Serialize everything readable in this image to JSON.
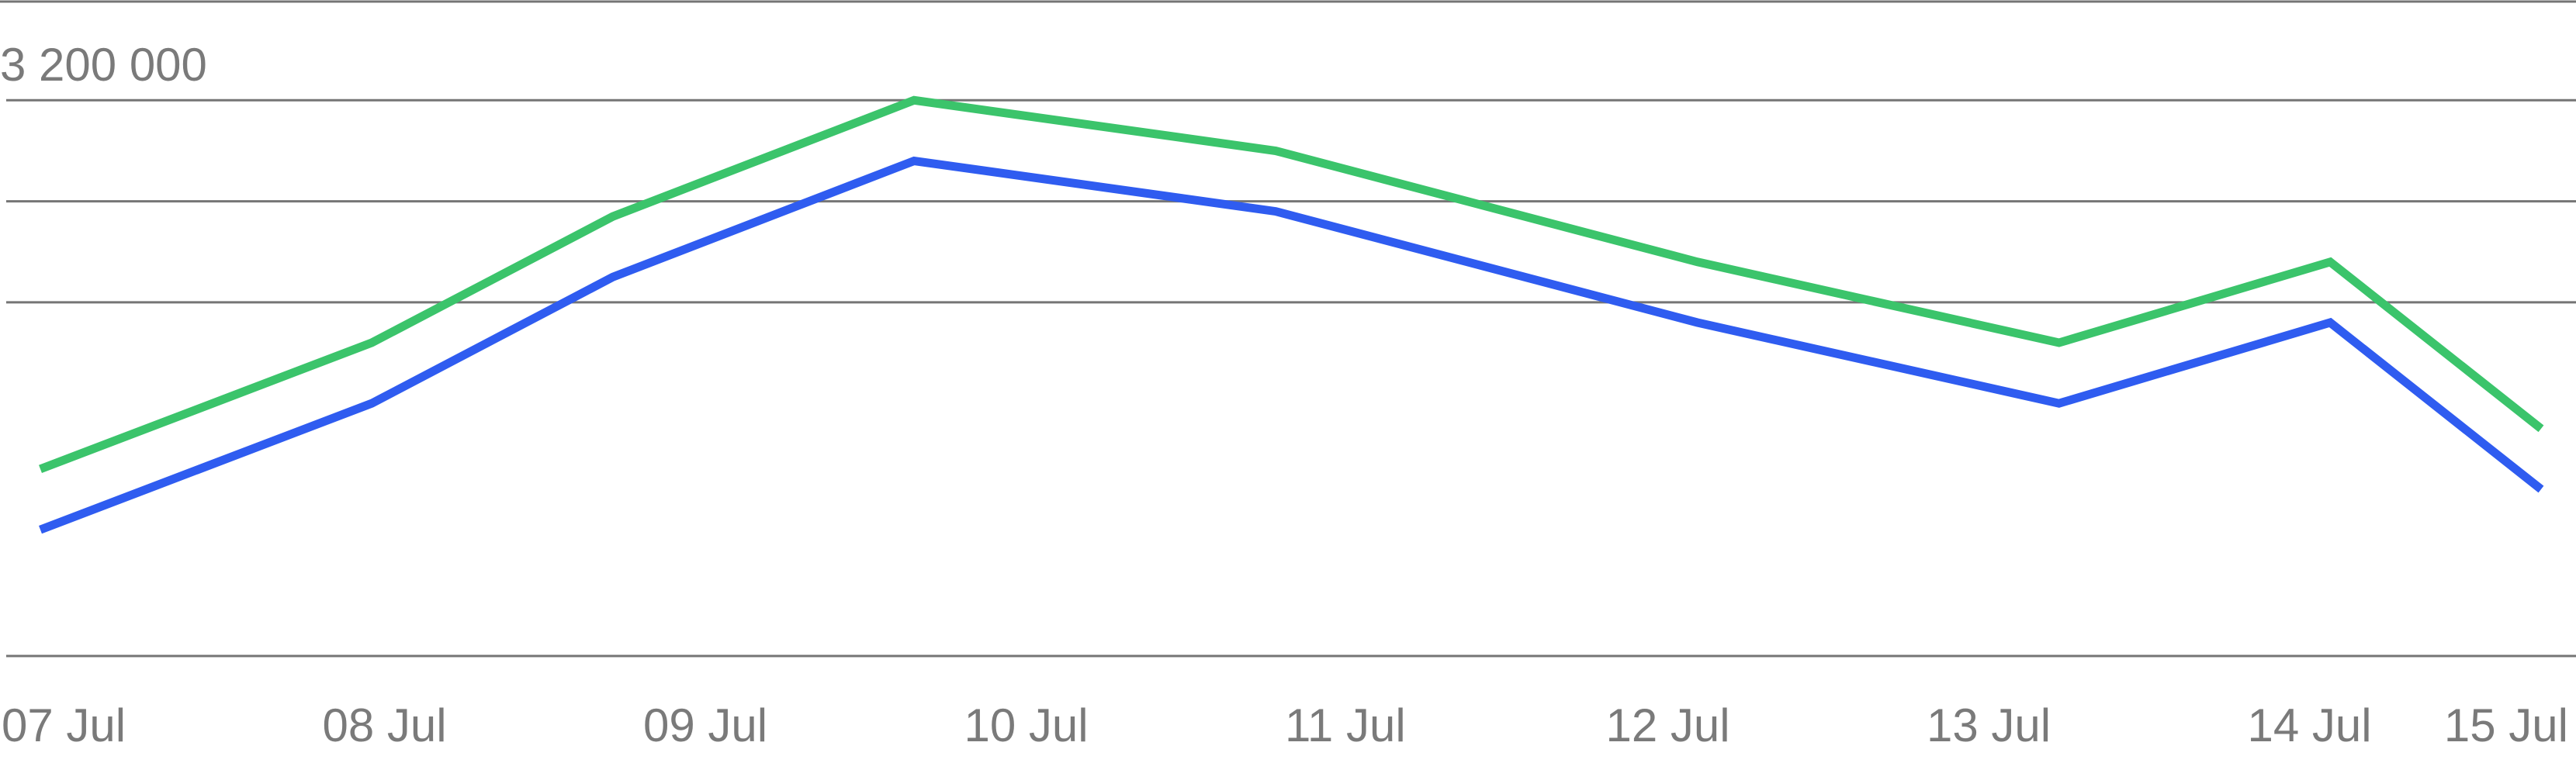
{
  "chart_data": {
    "type": "line",
    "categories": [
      "07 Jul",
      "08 Jul",
      "09 Jul",
      "10 Jul",
      "11 Jul",
      "12 Jul",
      "13 Jul",
      "14 Jul",
      "15 Jul"
    ],
    "y_tick_label": "3 200 000",
    "grid": true,
    "series": [
      {
        "color": "#3bc46b",
        "points": [
          {
            "x": 0.0,
            "y": 2370000
          },
          {
            "x": 1.1,
            "y": 2620000
          },
          {
            "x": 1.9,
            "y": 2870000
          },
          {
            "x": 2.9,
            "y": 3100000
          },
          {
            "x": 4.1,
            "y": 3000000
          },
          {
            "x": 5.5,
            "y": 2780000
          },
          {
            "x": 6.7,
            "y": 2620000
          },
          {
            "x": 7.6,
            "y": 2780000
          },
          {
            "x": 8.3,
            "y": 2450000
          }
        ]
      },
      {
        "color": "#2f5cf0",
        "points": [
          {
            "x": 0.0,
            "y": 2250000
          },
          {
            "x": 1.1,
            "y": 2500000
          },
          {
            "x": 1.9,
            "y": 2750000
          },
          {
            "x": 2.9,
            "y": 2980000
          },
          {
            "x": 4.1,
            "y": 2880000
          },
          {
            "x": 5.5,
            "y": 2660000
          },
          {
            "x": 6.7,
            "y": 2500000
          },
          {
            "x": 7.6,
            "y": 2660000
          },
          {
            "x": 8.3,
            "y": 2330000
          }
        ]
      }
    ],
    "ylim": [
      2000000,
      3300000
    ]
  }
}
